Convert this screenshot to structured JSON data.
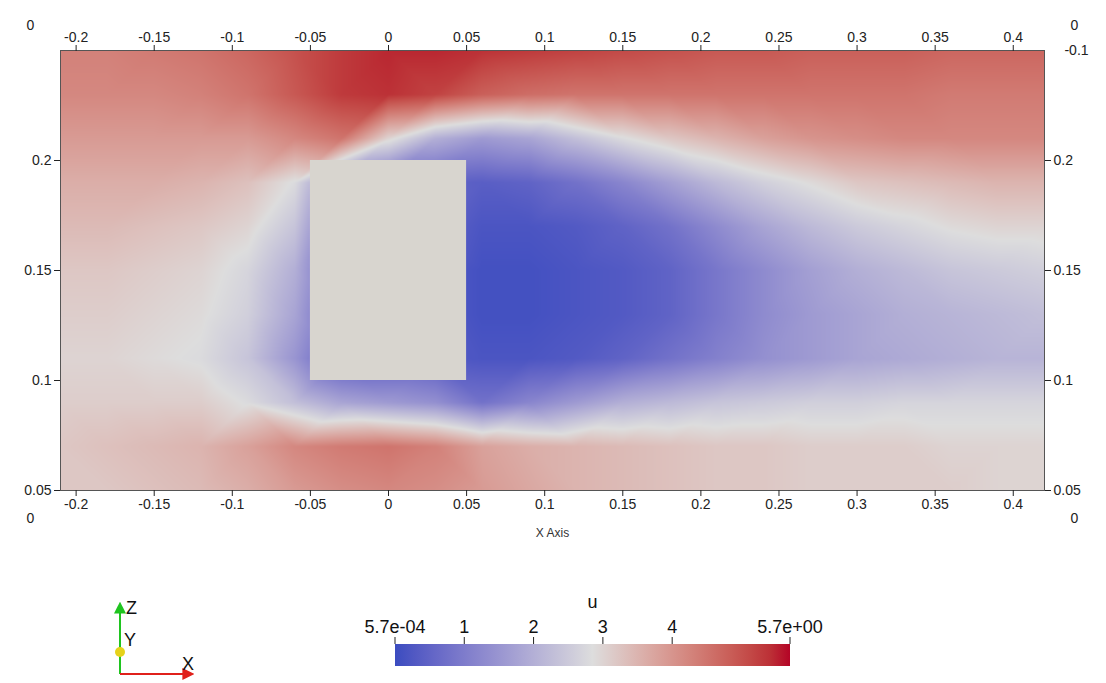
{
  "chart_data": {
    "type": "heatmap",
    "xlabel": "X Axis",
    "xlim": [
      -0.21,
      0.42
    ],
    "xticks": [
      -0.2,
      -0.15,
      -0.1,
      -0.05,
      0,
      0.05,
      0.1,
      0.15,
      0.2,
      0.25,
      0.3,
      0.35,
      0.4
    ],
    "ylim": [
      0.05,
      0.25
    ],
    "yticks": [
      0.05,
      0.1,
      0.15,
      0.2
    ],
    "depth_ticks": [
      0,
      -0.1
    ],
    "field": {
      "x": [
        -0.21,
        -0.18,
        -0.15,
        -0.12,
        -0.09,
        -0.06,
        -0.03,
        0,
        0.03,
        0.06,
        0.09,
        0.12,
        0.15,
        0.18,
        0.21,
        0.24,
        0.27,
        0.3,
        0.33,
        0.36,
        0.39,
        0.42
      ],
      "y": [
        0.05,
        0.07,
        0.09,
        0.11,
        0.13,
        0.15,
        0.17,
        0.19,
        0.21,
        0.23,
        0.25
      ],
      "u": [
        [
          3.2,
          3.2,
          3.3,
          3.4,
          3.6,
          3.9,
          4.1,
          4.2,
          4.1,
          3.9,
          3.7,
          3.5,
          3.4,
          3.3,
          3.2,
          3.2,
          3.1,
          3.1,
          3.1,
          3.1,
          3.0,
          3.0
        ],
        [
          3.2,
          3.3,
          3.4,
          3.5,
          3.8,
          4.2,
          4.4,
          4.5,
          4.3,
          3.8,
          3.6,
          3.5,
          3.4,
          3.3,
          3.2,
          3.2,
          3.1,
          3.1,
          3.1,
          3.0,
          3.0,
          3.0
        ],
        [
          3.1,
          3.1,
          3.1,
          3.1,
          2.8,
          2.3,
          1.8,
          1.6,
          1.4,
          0.8,
          1.2,
          1.6,
          2.0,
          2.2,
          2.4,
          2.5,
          2.6,
          2.6,
          2.7,
          2.7,
          2.7,
          2.7
        ],
        [
          3.0,
          3.0,
          2.9,
          2.8,
          2.4,
          1.5,
          0.3,
          0.3,
          0.3,
          0.2,
          0.2,
          0.3,
          0.5,
          0.8,
          1.1,
          1.4,
          1.6,
          1.8,
          1.9,
          2.0,
          2.1,
          2.1
        ],
        [
          3.1,
          3.1,
          3.0,
          2.9,
          2.6,
          1.8,
          0.3,
          0.3,
          0.3,
          0.1,
          0.1,
          0.2,
          0.3,
          0.5,
          0.9,
          1.3,
          1.6,
          1.8,
          2.0,
          2.1,
          2.2,
          2.3
        ],
        [
          3.2,
          3.2,
          3.1,
          3.0,
          2.7,
          2.0,
          0.3,
          0.3,
          0.3,
          0.1,
          0.1,
          0.2,
          0.3,
          0.5,
          0.9,
          1.3,
          1.7,
          2.0,
          2.2,
          2.4,
          2.5,
          2.6
        ],
        [
          3.4,
          3.4,
          3.3,
          3.2,
          3.0,
          2.4,
          0.5,
          0.5,
          0.5,
          0.2,
          0.2,
          0.3,
          0.5,
          0.8,
          1.3,
          1.8,
          2.2,
          2.5,
          2.7,
          2.9,
          3.0,
          3.0
        ],
        [
          3.6,
          3.6,
          3.6,
          3.5,
          3.3,
          2.8,
          1.0,
          0.6,
          0.5,
          0.4,
          0.5,
          0.8,
          1.2,
          1.7,
          2.2,
          2.6,
          2.9,
          3.2,
          3.3,
          3.4,
          3.5,
          3.5
        ],
        [
          3.9,
          3.9,
          3.9,
          3.9,
          3.9,
          4.2,
          4.5,
          3.0,
          2.0,
          1.6,
          1.8,
          2.3,
          2.8,
          3.2,
          3.5,
          3.8,
          4.0,
          4.1,
          4.2,
          4.2,
          4.2,
          4.2
        ],
        [
          4.2,
          4.2,
          4.2,
          4.3,
          4.5,
          4.9,
          5.3,
          5.4,
          5.2,
          4.8,
          4.6,
          4.5,
          4.5,
          4.5,
          4.5,
          4.5,
          4.5,
          4.5,
          4.5,
          4.4,
          4.4,
          4.4
        ],
        [
          4.3,
          4.3,
          4.4,
          4.5,
          4.7,
          5.0,
          5.3,
          5.5,
          5.5,
          5.4,
          5.3,
          5.2,
          5.1,
          5.0,
          4.9,
          4.9,
          4.8,
          4.8,
          4.8,
          4.7,
          4.7,
          4.7
        ]
      ]
    },
    "obstacle": {
      "x": [
        -0.05,
        0.05
      ],
      "y": [
        0.1,
        0.2
      ],
      "color": "#d8d5cf"
    },
    "colorbar": {
      "label": "u",
      "lim": [
        0.00057,
        5.7
      ],
      "ticks": [
        {
          "value": 0.00057,
          "label": "5.7e-04"
        },
        1,
        2,
        3,
        4,
        {
          "value": 5.7,
          "label": "5.7e+00"
        }
      ],
      "colors": [
        "#3b4cc0",
        "#dddddd",
        "#b40426"
      ]
    },
    "axes_triad": {
      "labels": [
        "Z",
        "Y",
        "X"
      ],
      "colors": [
        "#1fc41f",
        "#e6d21a",
        "#e0201b"
      ]
    }
  }
}
